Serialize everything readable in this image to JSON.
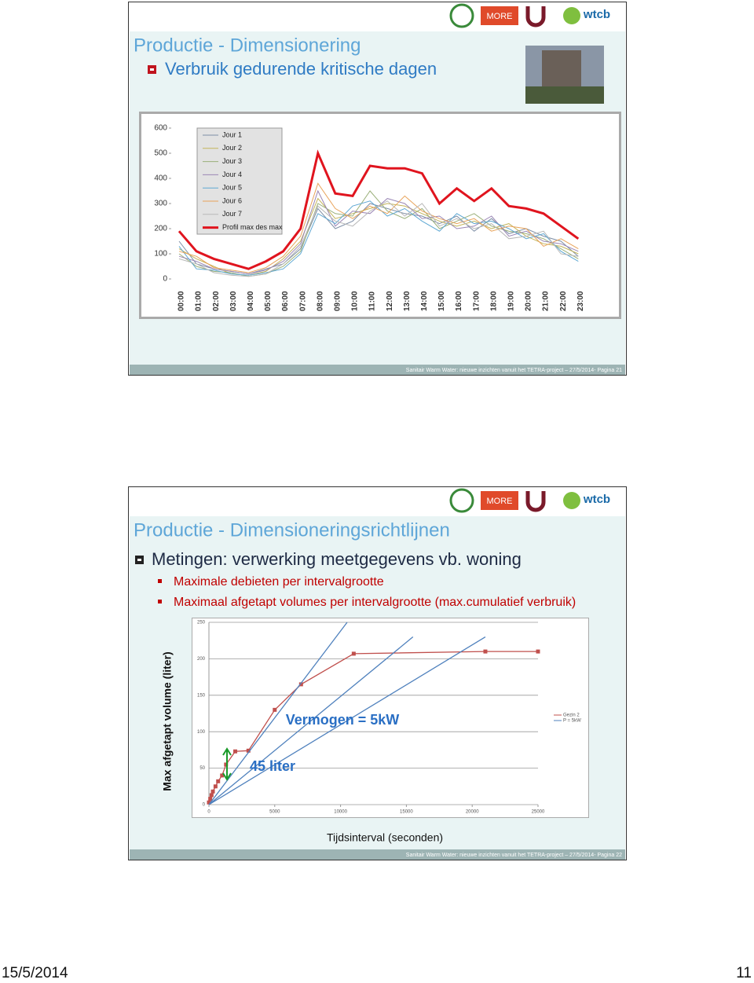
{
  "slides": [
    {
      "logos": [
        "MORE",
        "wtcb"
      ],
      "title": "Productie - Dimensionering",
      "bullet": "Verbruik gedurende kritische dagen",
      "footer": "Sanitair Warm Water: nieuwe inzichten vanuit het TETRA-project – 27/5/2014- Pagina 21"
    },
    {
      "logos": [
        "MORE",
        "wtcb"
      ],
      "title": "Productie - Dimensioneringsrichtlijnen",
      "bullet": "Metingen: verwerking meetgegevens vb. woning",
      "subbullets": [
        "Maximale debieten per intervalgrootte",
        "Maximaal afgetapt volumes per intervalgrootte (max.cumulatief verbruik)"
      ],
      "footer": "Sanitair Warm Water: nieuwe inzichten vanuit het TETRA-project – 27/5/2014- Pagina 22"
    }
  ],
  "chart_data": [
    {
      "type": "line",
      "legend": "upper-left",
      "grid": false,
      "categories": [
        "00:00",
        "01:00",
        "02:00",
        "03:00",
        "04:00",
        "05:00",
        "06:00",
        "07:00",
        "08:00",
        "09:00",
        "10:00",
        "11:00",
        "12:00",
        "13:00",
        "14:00",
        "15:00",
        "16:00",
        "17:00",
        "18:00",
        "19:00",
        "20:00",
        "21:00",
        "22:00",
        "23:00"
      ],
      "ylim": [
        0,
        600
      ],
      "yticks": [
        0,
        100,
        200,
        300,
        400,
        500,
        600
      ],
      "series": [
        {
          "name": "Jour 1",
          "color": "#7f8fa6",
          "width": 1,
          "values": [
            150,
            60,
            40,
            30,
            20,
            40,
            60,
            120,
            280,
            200,
            230,
            300,
            280,
            260,
            250,
            220,
            250,
            190,
            240,
            180,
            200,
            170,
            150,
            90
          ]
        },
        {
          "name": "Jour 2",
          "color": "#c3b45a",
          "width": 1,
          "values": [
            120,
            80,
            50,
            20,
            15,
            30,
            80,
            150,
            320,
            240,
            260,
            280,
            300,
            290,
            260,
            230,
            210,
            230,
            200,
            220,
            170,
            140,
            130,
            100
          ]
        },
        {
          "name": "Jour 3",
          "color": "#9bb07a",
          "width": 1,
          "values": [
            100,
            50,
            30,
            25,
            10,
            20,
            50,
            110,
            300,
            260,
            250,
            350,
            270,
            240,
            280,
            200,
            230,
            260,
            210,
            190,
            180,
            160,
            120,
            80
          ]
        },
        {
          "name": "Jour 4",
          "color": "#9a86b5",
          "width": 1,
          "values": [
            90,
            70,
            40,
            30,
            20,
            35,
            70,
            140,
            350,
            210,
            270,
            260,
            320,
            300,
            240,
            250,
            200,
            210,
            250,
            170,
            190,
            150,
            140,
            110
          ]
        },
        {
          "name": "Jour 5",
          "color": "#5fa8d3",
          "width": 1,
          "values": [
            130,
            40,
            35,
            20,
            15,
            25,
            40,
            100,
            260,
            220,
            290,
            310,
            250,
            280,
            230,
            190,
            260,
            220,
            230,
            200,
            160,
            180,
            110,
            70
          ]
        },
        {
          "name": "Jour 6",
          "color": "#e8a35a",
          "width": 1,
          "values": [
            110,
            90,
            45,
            35,
            25,
            45,
            90,
            170,
            380,
            280,
            240,
            290,
            260,
            330,
            270,
            240,
            220,
            240,
            190,
            210,
            200,
            130,
            160,
            120
          ]
        },
        {
          "name": "Jour 7",
          "color": "#b8b8b8",
          "width": 1,
          "values": [
            80,
            60,
            25,
            15,
            10,
            20,
            60,
            130,
            290,
            230,
            210,
            270,
            310,
            250,
            300,
            210,
            240,
            200,
            220,
            160,
            170,
            190,
            100,
            90
          ]
        },
        {
          "name": "Profil max des max",
          "color": "#e0141e",
          "width": 3,
          "values": [
            190,
            110,
            80,
            60,
            40,
            70,
            110,
            200,
            500,
            340,
            330,
            450,
            440,
            440,
            420,
            300,
            360,
            310,
            360,
            290,
            280,
            260,
            210,
            160
          ]
        }
      ]
    },
    {
      "type": "scatter-line",
      "legend": "right",
      "grid": true,
      "xlabel": "Tijdsinterval (seconden)",
      "ylabel": "Max afgetapt volume (liter)",
      "annotations": [
        "Vermogen = 5kW",
        "45 liter"
      ],
      "xlim": [
        0,
        25000
      ],
      "xticks": [
        0,
        5000,
        10000,
        15000,
        20000,
        25000
      ],
      "ylim": [
        0,
        250
      ],
      "yticks": [
        0,
        50,
        100,
        150,
        200,
        250
      ],
      "series": [
        {
          "name": "Gezin 2",
          "color": "#c0504d",
          "markers": true,
          "x": [
            0,
            100,
            200,
            300,
            500,
            700,
            1000,
            1300,
            2000,
            3000,
            5000,
            7000,
            11000,
            21000,
            25000
          ],
          "y": [
            3,
            8,
            13,
            18,
            25,
            32,
            40,
            55,
            73,
            74,
            130,
            165,
            207,
            210,
            210
          ]
        },
        {
          "name": "P = 5kW",
          "color": "#4f81bd",
          "markers": false,
          "x": [
            0,
            10500,
            null,
            0,
            15500,
            null,
            0,
            21000
          ],
          "y": [
            0,
            250,
            null,
            0,
            230,
            null,
            0,
            230
          ]
        }
      ]
    }
  ],
  "page": {
    "date": "15/5/2014",
    "number": "11"
  }
}
